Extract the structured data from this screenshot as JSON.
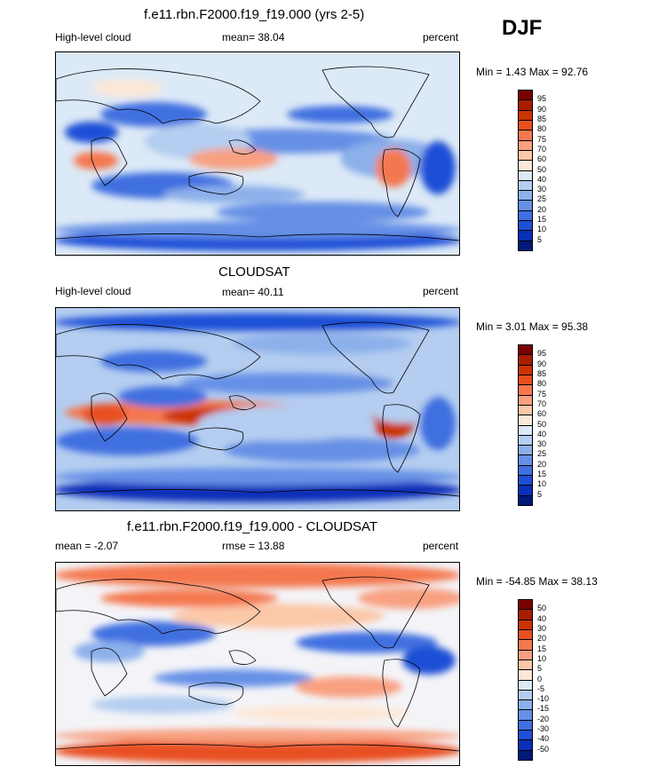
{
  "season": "DJF",
  "panels": [
    {
      "id": "model",
      "title": "f.e11.rbn.F2000.f19_f19.000 (yrs 2-5)",
      "left_label": "High-level cloud",
      "center_label": "mean=  38.04",
      "right_label": "percent",
      "minmax": "Min =   1.43 Max =  92.76",
      "colorbar_labels": [
        "95",
        "90",
        "85",
        "80",
        "75",
        "70",
        "60",
        "50",
        "40",
        "30",
        "25",
        "20",
        "15",
        "10",
        "5"
      ],
      "colors": [
        "#7a0000",
        "#a81d00",
        "#cc3300",
        "#e85020",
        "#f47850",
        "#f8a080",
        "#fbc8a8",
        "#fde8d8",
        "#dce9f7",
        "#b4cdf0",
        "#8cb0ea",
        "#6690e6",
        "#3f6fe0",
        "#1e4fd6",
        "#0a2fb8",
        "#001a7a"
      ]
    },
    {
      "id": "obs",
      "title": "CLOUDSAT",
      "left_label": "High-level cloud",
      "center_label": "mean=  40.11",
      "right_label": "percent",
      "minmax": "Min =   3.01 Max =  95.38",
      "colorbar_labels": [
        "95",
        "90",
        "85",
        "80",
        "75",
        "70",
        "60",
        "50",
        "40",
        "30",
        "25",
        "20",
        "15",
        "10",
        "5"
      ],
      "colors": [
        "#7a0000",
        "#a81d00",
        "#cc3300",
        "#e85020",
        "#f47850",
        "#f8a080",
        "#fbc8a8",
        "#fde8d8",
        "#dce9f7",
        "#b4cdf0",
        "#8cb0ea",
        "#6690e6",
        "#3f6fe0",
        "#1e4fd6",
        "#0a2fb8",
        "#001a7a"
      ]
    },
    {
      "id": "diff",
      "title": "f.e11.rbn.F2000.f19_f19.000 - CLOUDSAT",
      "left_label": "mean =  -2.07",
      "center_label": "rmse =  13.88",
      "right_label": "percent",
      "minmax": "Min = -54.85 Max =  38.13",
      "colorbar_labels": [
        "50",
        "40",
        "30",
        "20",
        "15",
        "10",
        "5",
        "0",
        "-5",
        "-10",
        "-15",
        "-20",
        "-30",
        "-40",
        "-50"
      ],
      "colors": [
        "#7a0000",
        "#a81d00",
        "#cc3300",
        "#e85020",
        "#f47850",
        "#f8a080",
        "#fbc8a8",
        "#fde8d8",
        "#dce9f7",
        "#b4cdf0",
        "#8cb0ea",
        "#6690e6",
        "#3f6fe0",
        "#1e4fd6",
        "#0a2fb8",
        "#001a7a"
      ]
    }
  ]
}
